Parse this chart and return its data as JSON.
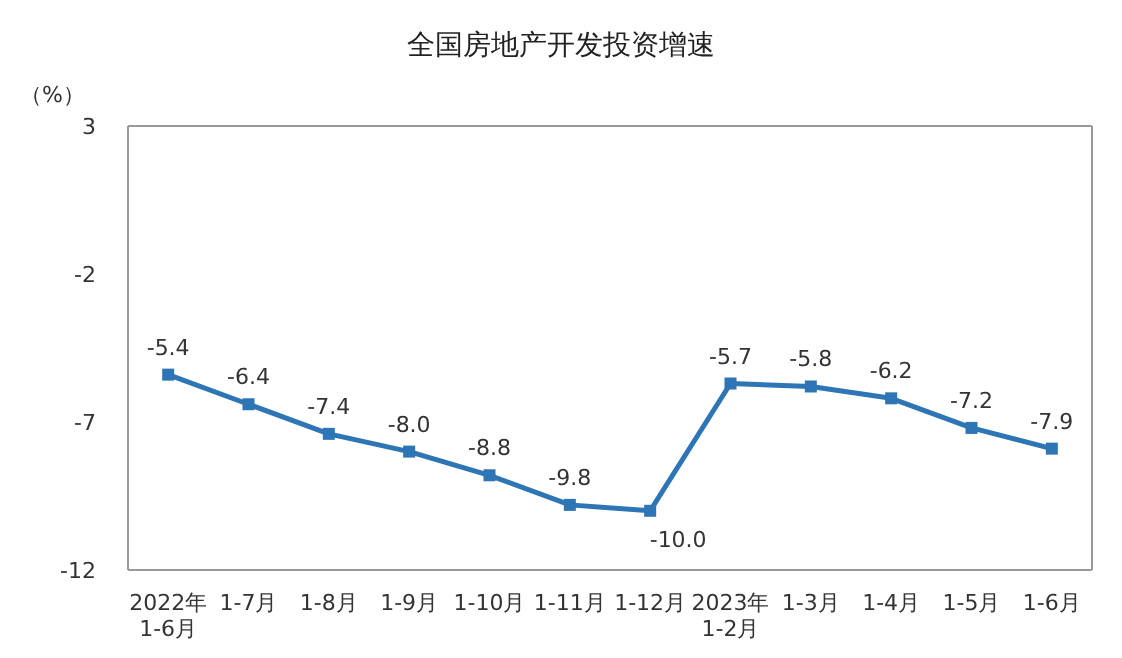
{
  "chart_data": {
    "type": "line",
    "title": "全国房地产开发投资增速",
    "ylabel": "（%）",
    "categories": [
      "2022年\n1-6月",
      "1-7月",
      "1-8月",
      "1-9月",
      "1-10月",
      "1-11月",
      "1-12月",
      "2023年\n1-2月",
      "1-3月",
      "1-4月",
      "1-5月",
      "1-6月"
    ],
    "series": [
      {
        "color": "#2e75b6",
        "values": [
          -5.4,
          -6.4,
          -7.4,
          -8.0,
          -8.8,
          -9.8,
          -10.0,
          -5.7,
          -5.8,
          -6.2,
          -7.2,
          -7.9
        ],
        "value_labels": [
          "-5.4",
          "-6.4",
          "-7.4",
          "-8.0",
          "-8.8",
          "-9.8",
          "-10.0",
          "-5.7",
          "-5.8",
          "-6.2",
          "-7.2",
          "-7.9"
        ]
      }
    ],
    "ylim": [
      -12,
      3
    ],
    "yticks": [
      -12,
      -7,
      -2,
      3
    ],
    "grid": false,
    "legend": false,
    "marker": "square",
    "line_style": "solid"
  }
}
